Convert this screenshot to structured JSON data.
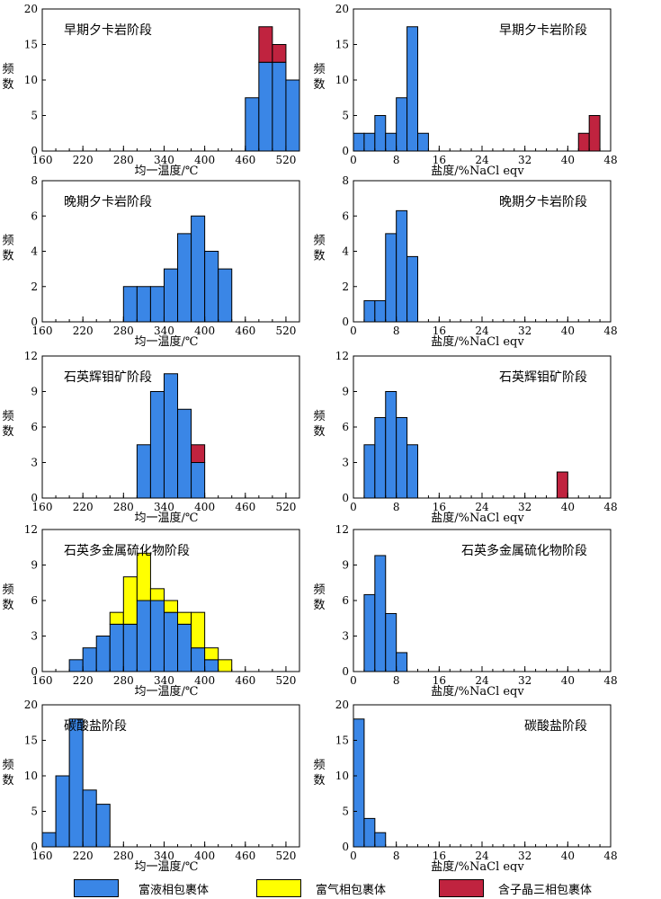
{
  "colors": {
    "liquid": "#3a86e6",
    "vapor": "#ffff00",
    "daughter": "#c0233f",
    "stroke": "#000000"
  },
  "legend": {
    "items": [
      {
        "key": "liquid",
        "label": "富液相包裹体"
      },
      {
        "key": "vapor",
        "label": "富气相包裹体"
      },
      {
        "key": "daughter",
        "label": "含子晶三相包裹体"
      }
    ]
  },
  "chart_data": [
    {
      "type": "bar",
      "stacked": true,
      "title": "早期夕卡岩阶段",
      "xlabel": "均一温度/℃",
      "ylabel": "频数",
      "xlim": [
        160,
        540
      ],
      "xticks": [
        160,
        220,
        280,
        340,
        400,
        460,
        520
      ],
      "bin_width": 20,
      "ylim": [
        0,
        20
      ],
      "yticks": [
        0,
        5,
        10,
        15,
        20
      ],
      "bins": [
        470,
        490,
        510,
        530
      ],
      "series": [
        {
          "key": "liquid",
          "values": [
            7.5,
            12.5,
            12.5,
            10
          ]
        },
        {
          "key": "daughter",
          "values": [
            0,
            5,
            2.5,
            0
          ]
        }
      ]
    },
    {
      "type": "bar",
      "stacked": true,
      "title": "早期夕卡岩阶段",
      "xlabel": "盐度/%NaCl eqv",
      "ylabel": "频数",
      "xlim": [
        0,
        48
      ],
      "xticks": [
        0,
        8,
        16,
        24,
        32,
        40,
        48
      ],
      "bin_width": 2,
      "ylim": [
        0,
        20
      ],
      "yticks": [
        0,
        5,
        10,
        15,
        20
      ],
      "bins": [
        1,
        3,
        5,
        7,
        9,
        11,
        13,
        43,
        45
      ],
      "series": [
        {
          "key": "liquid",
          "values": [
            2.5,
            2.5,
            5,
            2.5,
            7.5,
            17.5,
            2.5,
            0,
            0
          ]
        },
        {
          "key": "daughter",
          "values": [
            0,
            0,
            0,
            0,
            0,
            0,
            0,
            2.5,
            5
          ]
        }
      ]
    },
    {
      "type": "bar",
      "stacked": true,
      "title": "晚期夕卡岩阶段",
      "xlabel": "均一温度/℃",
      "ylabel": "频数",
      "xlim": [
        160,
        540
      ],
      "xticks": [
        160,
        220,
        280,
        340,
        400,
        460,
        520
      ],
      "bin_width": 20,
      "ylim": [
        0,
        8
      ],
      "yticks": [
        0,
        2,
        4,
        6,
        8
      ],
      "bins": [
        290,
        310,
        330,
        350,
        370,
        390,
        410,
        430
      ],
      "series": [
        {
          "key": "liquid",
          "values": [
            2,
            2,
            2,
            3,
            5,
            6,
            4,
            3
          ]
        }
      ]
    },
    {
      "type": "bar",
      "stacked": true,
      "title": "晚期夕卡岩阶段",
      "xlabel": "盐度/%NaCl eqv",
      "ylabel": "频数",
      "xlim": [
        0,
        48
      ],
      "xticks": [
        0,
        8,
        16,
        24,
        32,
        40,
        48
      ],
      "bin_width": 2,
      "ylim": [
        0,
        8
      ],
      "yticks": [
        0,
        2,
        4,
        6,
        8
      ],
      "bins": [
        3,
        5,
        7,
        9,
        11
      ],
      "series": [
        {
          "key": "liquid",
          "values": [
            1.2,
            1.2,
            5,
            6.3,
            3.7
          ]
        }
      ]
    },
    {
      "type": "bar",
      "stacked": true,
      "title": "石英辉钼矿阶段",
      "xlabel": "均一温度/℃",
      "ylabel": "频数",
      "xlim": [
        160,
        540
      ],
      "xticks": [
        160,
        220,
        280,
        340,
        400,
        460,
        520
      ],
      "bin_width": 20,
      "ylim": [
        0,
        12
      ],
      "yticks": [
        0,
        3,
        6,
        9,
        12
      ],
      "bins": [
        310,
        330,
        350,
        370,
        390
      ],
      "series": [
        {
          "key": "liquid",
          "values": [
            4.5,
            9,
            10.5,
            7.5,
            3
          ]
        },
        {
          "key": "daughter",
          "values": [
            0,
            0,
            0,
            0,
            1.5
          ]
        }
      ]
    },
    {
      "type": "bar",
      "stacked": true,
      "title": "石英辉钼矿阶段",
      "xlabel": "盐度/%NaCl eqv",
      "ylabel": "频数",
      "xlim": [
        0,
        48
      ],
      "xticks": [
        0,
        8,
        16,
        24,
        32,
        40,
        48
      ],
      "bin_width": 2,
      "ylim": [
        0,
        12
      ],
      "yticks": [
        0,
        3,
        6,
        9,
        12
      ],
      "bins": [
        3,
        5,
        7,
        9,
        11,
        39
      ],
      "series": [
        {
          "key": "liquid",
          "values": [
            4.5,
            6.8,
            9,
            6.8,
            4.5,
            0
          ]
        },
        {
          "key": "daughter",
          "values": [
            0,
            0,
            0,
            0,
            0,
            2.2
          ]
        }
      ]
    },
    {
      "type": "bar",
      "stacked": true,
      "title": "石英多金属硫化物阶段",
      "xlabel": "均一温度/℃",
      "ylabel": "频数",
      "xlim": [
        160,
        540
      ],
      "xticks": [
        160,
        220,
        280,
        340,
        400,
        460,
        520
      ],
      "bin_width": 20,
      "ylim": [
        0,
        12
      ],
      "yticks": [
        0,
        3,
        6,
        9,
        12
      ],
      "bins": [
        210,
        230,
        250,
        270,
        290,
        310,
        330,
        350,
        370,
        390,
        410,
        430
      ],
      "series": [
        {
          "key": "liquid",
          "values": [
            1,
            2,
            3,
            4,
            4,
            6,
            6,
            5,
            4,
            2,
            1,
            0
          ]
        },
        {
          "key": "vapor",
          "values": [
            0,
            0,
            0,
            1,
            4,
            4,
            1,
            1,
            1,
            3,
            1,
            1
          ]
        }
      ]
    },
    {
      "type": "bar",
      "stacked": true,
      "title": "石英多金属硫化物阶段",
      "xlabel": "盐度/%NaCl eqv",
      "ylabel": "频数",
      "xlim": [
        0,
        48
      ],
      "xticks": [
        0,
        8,
        16,
        24,
        32,
        40,
        48
      ],
      "bin_width": 2,
      "ylim": [
        0,
        12
      ],
      "yticks": [
        0,
        3,
        6,
        9,
        12
      ],
      "bins": [
        3,
        5,
        7,
        9
      ],
      "series": [
        {
          "key": "liquid",
          "values": [
            6.5,
            9.8,
            4.9,
            1.6
          ]
        }
      ]
    },
    {
      "type": "bar",
      "stacked": true,
      "title": "碳酸盐阶段",
      "xlabel": "均一温度/℃",
      "ylabel": "频数",
      "xlim": [
        160,
        540
      ],
      "xticks": [
        160,
        220,
        280,
        340,
        400,
        460,
        520
      ],
      "bin_width": 20,
      "ylim": [
        0,
        20
      ],
      "yticks": [
        0,
        5,
        10,
        15,
        20
      ],
      "bins": [
        170,
        190,
        210,
        230,
        250
      ],
      "series": [
        {
          "key": "liquid",
          "values": [
            2,
            10,
            18,
            8,
            6
          ]
        }
      ]
    },
    {
      "type": "bar",
      "stacked": true,
      "title": "碳酸盐阶段",
      "xlabel": "盐度/%NaCl eqv",
      "ylabel": "频数",
      "xlim": [
        0,
        48
      ],
      "xticks": [
        0,
        8,
        16,
        24,
        32,
        40,
        48
      ],
      "bin_width": 2,
      "ylim": [
        0,
        20
      ],
      "yticks": [
        0,
        5,
        10,
        15,
        20
      ],
      "bins": [
        1,
        3,
        5
      ],
      "series": [
        {
          "key": "liquid",
          "values": [
            18,
            4,
            2
          ]
        }
      ]
    }
  ]
}
